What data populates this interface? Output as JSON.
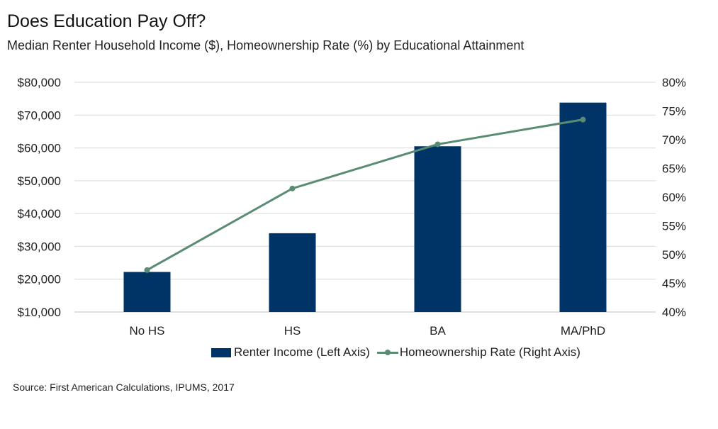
{
  "title": "Does Education Pay Off?",
  "subtitle": "Median Renter Household Income ($), Homeownership Rate (%) by Educational Attainment",
  "source": "Source: First American Calculations, IPUMS, 2017",
  "colors": {
    "bar": "#003366",
    "line": "#5a8b73",
    "grid": "#d9d9d9"
  },
  "chart_data": {
    "type": "bar",
    "title": "Does Education Pay Off?",
    "subtitle": "Median Renter Household Income ($), Homeownership Rate (%) by Educational Attainment",
    "categories": [
      "No HS",
      "HS",
      "BA",
      "MA/PhD"
    ],
    "series": [
      {
        "name": "Renter Income (Left Axis)",
        "type": "bar",
        "axis": "left",
        "values": [
          22200,
          34000,
          60500,
          73800
        ]
      },
      {
        "name": "Homeownership Rate (Right Axis)",
        "type": "line",
        "axis": "right",
        "values": [
          47.3,
          61.5,
          69.2,
          73.5
        ]
      }
    ],
    "left_axis": {
      "ylim": [
        10000,
        80000
      ],
      "ticks": [
        10000,
        20000,
        30000,
        40000,
        50000,
        60000,
        70000,
        80000
      ],
      "tick_labels": [
        "$10,000",
        "$20,000",
        "$30,000",
        "$40,000",
        "$50,000",
        "$60,000",
        "$70,000",
        "$80,000"
      ]
    },
    "right_axis": {
      "ylim": [
        40,
        80
      ],
      "ticks": [
        40,
        45,
        50,
        55,
        60,
        65,
        70,
        75,
        80
      ],
      "tick_labels": [
        "40%",
        "45%",
        "50%",
        "55%",
        "60%",
        "65%",
        "70%",
        "75%",
        "80%"
      ]
    },
    "grid": true,
    "legend_position": "bottom"
  }
}
